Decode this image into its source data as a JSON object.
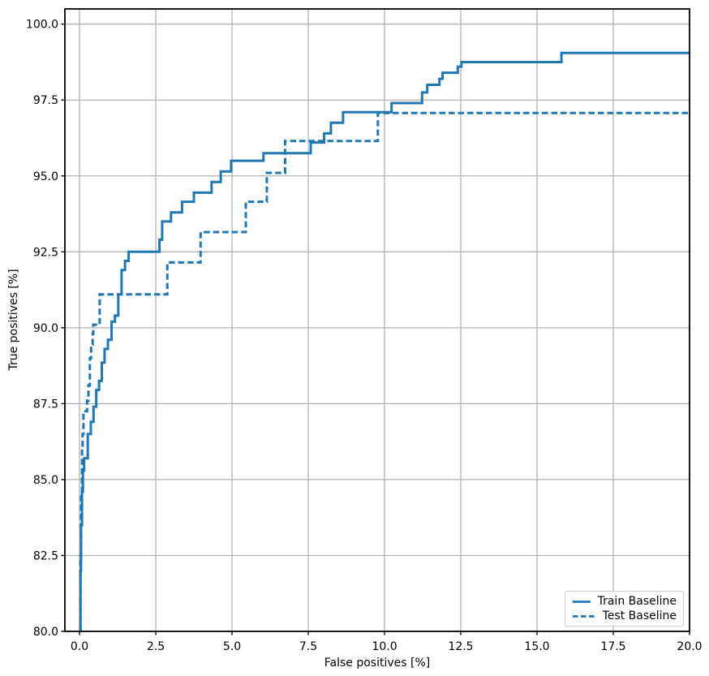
{
  "chart_data": {
    "type": "line",
    "subtype": "step",
    "title": "",
    "xlabel": "False positives [%]",
    "ylabel": "True positives [%]",
    "xlim": [
      -0.48,
      20
    ],
    "ylim": [
      80,
      100.5
    ],
    "x_tick_labels": [
      "0.0",
      "2.5",
      "5.0",
      "7.5",
      "10.0",
      "12.5",
      "15.0",
      "17.5",
      "20.0"
    ],
    "y_tick_labels": [
      "80.0",
      "82.5",
      "85.0",
      "87.5",
      "90.0",
      "92.5",
      "95.0",
      "97.5",
      "100.0"
    ],
    "grid": true,
    "grid_color": "#b3b3b3",
    "spine_color": "#000000",
    "legend_position": "lower right",
    "series": [
      {
        "name": "Train Baseline",
        "line_style": "solid",
        "color": "#1f77b4",
        "start": [
          0.03,
          80.0
        ],
        "x_end": 20,
        "steps": [
          [
            0.03,
            82.0
          ],
          [
            0.05,
            83.5
          ],
          [
            0.08,
            84.6
          ],
          [
            0.11,
            85.3
          ],
          [
            0.15,
            85.7
          ],
          [
            0.27,
            86.5
          ],
          [
            0.37,
            86.9
          ],
          [
            0.46,
            87.4
          ],
          [
            0.55,
            87.95
          ],
          [
            0.64,
            88.25
          ],
          [
            0.73,
            88.85
          ],
          [
            0.82,
            89.3
          ],
          [
            0.93,
            89.6
          ],
          [
            1.05,
            90.2
          ],
          [
            1.16,
            90.4
          ],
          [
            1.27,
            91.1
          ],
          [
            1.38,
            91.9
          ],
          [
            1.49,
            92.2
          ],
          [
            1.61,
            92.5
          ],
          [
            2.62,
            92.9
          ],
          [
            2.71,
            93.5
          ],
          [
            3.0,
            93.8
          ],
          [
            3.36,
            94.15
          ],
          [
            3.75,
            94.45
          ],
          [
            4.33,
            94.8
          ],
          [
            4.63,
            95.15
          ],
          [
            4.97,
            95.5
          ],
          [
            6.03,
            95.75
          ],
          [
            7.58,
            96.1
          ],
          [
            8.02,
            96.4
          ],
          [
            8.24,
            96.75
          ],
          [
            8.64,
            97.1
          ],
          [
            10.23,
            97.4
          ],
          [
            11.23,
            97.75
          ],
          [
            11.4,
            98.0
          ],
          [
            11.8,
            98.2
          ],
          [
            11.9,
            98.4
          ],
          [
            12.4,
            98.6
          ],
          [
            12.52,
            98.75
          ],
          [
            15.8,
            99.05
          ]
        ]
      },
      {
        "name": "Test Baseline",
        "line_style": "dashed",
        "color": "#1f77b4",
        "start": [
          0.03,
          80.0
        ],
        "x_end": 20,
        "steps": [
          [
            0.03,
            82.5
          ],
          [
            0.05,
            84.5
          ],
          [
            0.08,
            86.0
          ],
          [
            0.1,
            86.5
          ],
          [
            0.13,
            87.25
          ],
          [
            0.25,
            87.6
          ],
          [
            0.29,
            88.1
          ],
          [
            0.34,
            89.0
          ],
          [
            0.38,
            89.45
          ],
          [
            0.43,
            89.8
          ],
          [
            0.45,
            90.1
          ],
          [
            0.66,
            91.1
          ],
          [
            2.88,
            92.15
          ],
          [
            3.97,
            93.15
          ],
          [
            5.45,
            94.15
          ],
          [
            6.14,
            95.1
          ],
          [
            6.74,
            96.15
          ],
          [
            9.78,
            97.07
          ]
        ]
      }
    ]
  }
}
